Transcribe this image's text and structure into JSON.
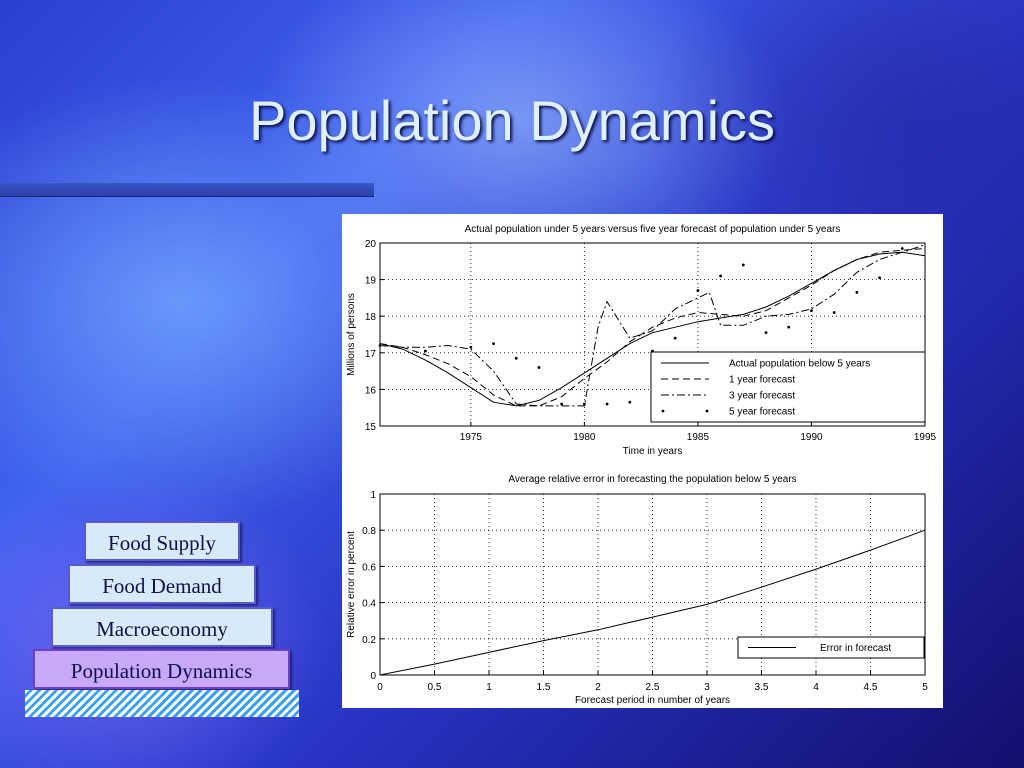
{
  "slide": {
    "title": "Population Dynamics",
    "stack": [
      "Food Supply",
      "Food Demand",
      "Macroeconomy",
      "Population Dynamics"
    ],
    "colors": {
      "box_light": "#d8eaf8",
      "box_highlight": "#c8a8f8",
      "title": "#dff0ff"
    }
  },
  "chart_data": [
    {
      "type": "line",
      "title": "Actual population under 5 years versus five year forecast of population under 5 years",
      "xlabel": "Time in years",
      "ylabel": "Millions of persons",
      "xlim": [
        1971,
        1995
      ],
      "ylim": [
        15,
        20
      ],
      "xticks": [
        1975,
        1980,
        1985,
        1990,
        1995
      ],
      "yticks": [
        15,
        16,
        17,
        18,
        19,
        20
      ],
      "grid": true,
      "legend_position": "lower-right",
      "series": [
        {
          "name": "Actual population below 5 years",
          "style": "solid",
          "x": [
            1971,
            1972,
            1973,
            1974,
            1975,
            1976,
            1977,
            1978,
            1979,
            1980,
            1981,
            1982,
            1983,
            1984,
            1985,
            1986,
            1987,
            1988,
            1989,
            1990,
            1991,
            1992,
            1993,
            1994,
            1995
          ],
          "y": [
            17.25,
            17.1,
            16.8,
            16.45,
            16.05,
            15.65,
            15.55,
            15.7,
            16.05,
            16.45,
            16.85,
            17.25,
            17.55,
            17.7,
            17.85,
            17.95,
            18.05,
            18.25,
            18.55,
            18.9,
            19.25,
            19.55,
            19.7,
            19.75,
            19.65
          ]
        },
        {
          "name": "1 year forecast",
          "style": "dashed",
          "x": [
            1971,
            1972,
            1973,
            1974,
            1975,
            1976,
            1977,
            1978,
            1979,
            1980,
            1981,
            1982,
            1983,
            1984,
            1985,
            1986,
            1987,
            1988,
            1989,
            1990,
            1991,
            1992,
            1993,
            1994,
            1995
          ],
          "y": [
            17.25,
            17.15,
            16.95,
            16.7,
            16.35,
            15.85,
            15.55,
            15.55,
            15.8,
            16.3,
            16.75,
            17.3,
            17.7,
            17.95,
            18.1,
            18.05,
            18.0,
            18.15,
            18.5,
            18.85,
            19.25,
            19.55,
            19.75,
            19.8,
            19.85
          ]
        },
        {
          "name": "3 year forecast",
          "style": "dashdot",
          "x": [
            1971,
            1972,
            1973,
            1974,
            1975,
            1976,
            1977,
            1978,
            1979,
            1980,
            1980.6,
            1981,
            1982,
            1983,
            1984,
            1985,
            1985.5,
            1986,
            1987,
            1988,
            1989,
            1990,
            1991,
            1992,
            1993,
            1994,
            1995
          ],
          "y": [
            17.2,
            17.15,
            17.15,
            17.2,
            17.1,
            16.5,
            15.6,
            15.55,
            15.55,
            15.55,
            17.7,
            18.4,
            17.4,
            17.6,
            18.2,
            18.5,
            18.65,
            17.75,
            17.75,
            18.0,
            18.05,
            18.2,
            18.6,
            19.2,
            19.55,
            19.75,
            19.95
          ]
        },
        {
          "name": "5 year forecast",
          "style": "dotted-markers",
          "x": [
            1971,
            1973,
            1975,
            1976,
            1977,
            1978,
            1979,
            1980,
            1981,
            1982,
            1983,
            1984,
            1985,
            1986,
            1987,
            1988,
            1989,
            1990,
            1991,
            1992,
            1993,
            1994
          ],
          "y": [
            17.2,
            17.05,
            17.15,
            17.25,
            16.85,
            16.6,
            15.6,
            15.6,
            15.6,
            15.65,
            17.05,
            17.4,
            18.7,
            19.1,
            19.4,
            17.55,
            17.7,
            18.15,
            18.1,
            18.65,
            19.05,
            19.85
          ]
        }
      ]
    },
    {
      "type": "line",
      "title": "Average relative error in forecasting the population below 5 years",
      "xlabel": "Forecast period in number of years",
      "ylabel": "Relative error in percent",
      "xlim": [
        0,
        5
      ],
      "ylim": [
        0,
        1
      ],
      "xticks": [
        0,
        0.5,
        1,
        1.5,
        2,
        2.5,
        3,
        3.5,
        4,
        4.5,
        5
      ],
      "xticklabels": [
        "0",
        "0.5",
        "1",
        "1.5",
        "2",
        "2.5",
        "3",
        "3.5",
        "4",
        "4.5",
        "5"
      ],
      "yticks": [
        0,
        0.2,
        0.4,
        0.6,
        0.8,
        1
      ],
      "yticklabels": [
        "0",
        "0.2",
        "0.4",
        "0.6",
        "0.8",
        "1"
      ],
      "grid": true,
      "legend_position": "lower-right",
      "series": [
        {
          "name": "Error in forecast",
          "style": "solid",
          "x": [
            0,
            0.5,
            1,
            1.5,
            2,
            2.5,
            3,
            3.5,
            4,
            4.5,
            5
          ],
          "y": [
            0.0,
            0.06,
            0.125,
            0.19,
            0.25,
            0.32,
            0.39,
            0.485,
            0.585,
            0.69,
            0.8
          ]
        }
      ]
    }
  ]
}
